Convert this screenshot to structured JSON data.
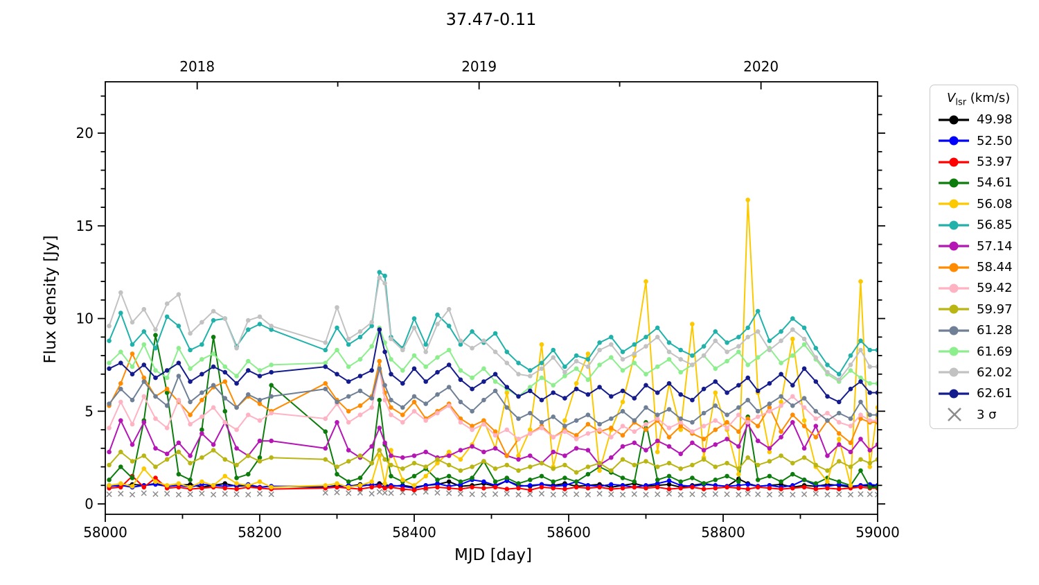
{
  "figure": {
    "title": "37.47-0.11",
    "background": "#ffffff"
  },
  "axes": {
    "x_label": "MJD [day]",
    "y_label": "Flux density [Jy]",
    "x_range": [
      58000,
      59000
    ],
    "y_range": [
      -0.56,
      22.77
    ],
    "x_major_ticks": [
      58000,
      58200,
      58400,
      58600,
      58800,
      59000
    ],
    "x_major_labels": [
      "58000",
      "58200",
      "58400",
      "58600",
      "58800",
      "59000"
    ],
    "x_minor_ticks": [
      58100,
      58300,
      58500,
      58700,
      58900
    ],
    "y_major_ticks": [
      0,
      5,
      10,
      15,
      20
    ],
    "y_major_labels": [
      "0",
      "5",
      "10",
      "15",
      "20"
    ],
    "y_minor_ticks": [
      1,
      2,
      3,
      4,
      6,
      7,
      8,
      9,
      11,
      12,
      13,
      14,
      16,
      17,
      18,
      19,
      21,
      22
    ],
    "top_ticks": [
      {
        "mjd": 58119,
        "label": "2018"
      },
      {
        "mjd": 58301,
        "label": ""
      },
      {
        "mjd": 58484,
        "label": "2019"
      },
      {
        "mjd": 58666,
        "label": ""
      },
      {
        "mjd": 58849,
        "label": "2020"
      }
    ]
  },
  "legend": {
    "title": {
      "symbol": "V",
      "subscript": "lsr",
      "suffix": " (km/s)"
    },
    "sigma": {
      "label": "3 σ",
      "color": "#8c8c8c"
    }
  },
  "chart_data": {
    "type": "line",
    "title": "37.47-0.11",
    "xlabel": "MJD [day]",
    "ylabel": "Flux density [Jy]",
    "xlim": [
      58000,
      59000
    ],
    "ylim": [
      -0.56,
      22.77
    ],
    "grid": false,
    "legend_position": "right-outside",
    "legend_title": "V_lsr (km/s)",
    "x": [
      58005,
      58020,
      58035,
      58050,
      58065,
      58080,
      58095,
      58110,
      58125,
      58140,
      58155,
      58170,
      58185,
      58200,
      58215,
      58285,
      58300,
      58315,
      58330,
      58345,
      58355,
      58362,
      58370,
      58385,
      58400,
      58415,
      58430,
      58445,
      58460,
      58475,
      58490,
      58505,
      58520,
      58535,
      58550,
      58565,
      58580,
      58595,
      58610,
      58625,
      58640,
      58655,
      58670,
      58685,
      58700,
      58715,
      58730,
      58745,
      58760,
      58775,
      58790,
      58805,
      58820,
      58832,
      58845,
      58860,
      58875,
      58890,
      58905,
      58920,
      58935,
      58950,
      58965,
      58978,
      58990,
      59000
    ],
    "series": [
      {
        "name": "49.98",
        "color": "#000000",
        "values": [
          1.0,
          0.95,
          1.05,
          1.0,
          1.1,
          0.95,
          1.0,
          1.05,
          0.9,
          1.0,
          1.1,
          0.95,
          1.0,
          0.9,
          0.95,
          0.9,
          1.0,
          0.95,
          1.05,
          1.0,
          1.1,
          1.05,
          0.95,
          1.0,
          0.9,
          1.0,
          1.05,
          1.2,
          0.95,
          1.0,
          1.1,
          0.95,
          1.25,
          1.0,
          0.95,
          1.05,
          1.0,
          1.1,
          0.95,
          1.0,
          1.05,
          0.9,
          1.0,
          1.1,
          0.95,
          1.0,
          1.05,
          0.9,
          1.0,
          1.1,
          1.0,
          0.95,
          1.35,
          1.1,
          0.95,
          1.0,
          1.05,
          0.9,
          1.0,
          0.95,
          1.05,
          1.0,
          0.9,
          1.0,
          0.95,
          1.0
        ]
      },
      {
        "name": "52.50",
        "color": "#0000ff",
        "values": [
          0.95,
          1.0,
          0.9,
          1.0,
          1.05,
          0.95,
          1.0,
          0.9,
          1.05,
          1.0,
          0.95,
          1.0,
          1.05,
          0.9,
          0.95,
          0.95,
          0.9,
          1.0,
          0.95,
          1.05,
          1.0,
          0.9,
          1.0,
          0.95,
          0.85,
          1.0,
          1.1,
          0.95,
          1.05,
          1.3,
          1.2,
          1.0,
          1.25,
          0.95,
          1.0,
          1.05,
          0.95,
          1.0,
          1.2,
          1.0,
          0.95,
          1.05,
          1.0,
          0.9,
          1.0,
          1.1,
          1.25,
          1.0,
          0.95,
          1.05,
          1.0,
          0.95,
          1.0,
          1.05,
          0.95,
          1.0,
          0.9,
          1.0,
          1.3,
          1.0,
          0.95,
          1.05,
          0.95,
          1.0,
          1.05,
          1.0
        ]
      },
      {
        "name": "53.97",
        "color": "#ff0000",
        "values": [
          0.85,
          0.9,
          1.5,
          0.9,
          1.4,
          0.85,
          0.9,
          0.8,
          0.85,
          0.9,
          0.85,
          0.8,
          0.9,
          0.85,
          0.8,
          0.85,
          0.9,
          0.85,
          0.8,
          0.9,
          0.95,
          0.85,
          0.9,
          0.8,
          0.75,
          0.85,
          0.9,
          0.85,
          0.8,
          0.9,
          0.85,
          0.9,
          0.8,
          0.85,
          0.75,
          0.9,
          0.85,
          0.8,
          0.9,
          0.85,
          0.9,
          0.8,
          0.85,
          0.9,
          0.85,
          0.9,
          0.8,
          0.85,
          0.9,
          0.8,
          0.85,
          0.9,
          0.85,
          0.8,
          0.9,
          0.85,
          0.8,
          0.85,
          0.9,
          0.8,
          0.85,
          0.8,
          0.85,
          0.9,
          0.85,
          0.85
        ]
      },
      {
        "name": "54.61",
        "color": "#0c7c0c",
        "values": [
          1.3,
          2.0,
          1.4,
          4.5,
          9.1,
          6.0,
          1.6,
          1.3,
          4.0,
          9.0,
          5.0,
          1.4,
          1.6,
          2.5,
          6.4,
          3.9,
          1.6,
          1.2,
          1.4,
          2.2,
          5.6,
          3.2,
          1.5,
          1.2,
          1.5,
          1.9,
          1.3,
          1.5,
          1.2,
          1.4,
          2.3,
          1.2,
          1.4,
          1.1,
          1.3,
          1.5,
          1.2,
          1.4,
          1.2,
          1.6,
          2.0,
          1.7,
          1.4,
          1.2,
          4.4,
          1.3,
          1.5,
          1.2,
          1.4,
          1.1,
          1.3,
          1.5,
          1.2,
          4.7,
          1.3,
          1.5,
          1.2,
          1.6,
          1.3,
          1.1,
          1.4,
          1.2,
          1.0,
          1.8,
          0.9,
          0.9
        ]
      },
      {
        "name": "56.08",
        "color": "#fcc900",
        "values": [
          1.0,
          1.1,
          0.95,
          1.9,
          1.2,
          1.0,
          1.1,
          0.9,
          1.2,
          1.0,
          1.5,
          1.1,
          1.0,
          1.2,
          0.9,
          1.0,
          1.1,
          0.9,
          1.0,
          1.2,
          2.6,
          1.1,
          2.9,
          1.3,
          1.0,
          1.5,
          2.2,
          2.8,
          2.4,
          3.2,
          4.5,
          3.0,
          6.0,
          2.6,
          4.0,
          8.6,
          2.0,
          4.5,
          6.5,
          8.1,
          1.8,
          4.0,
          5.5,
          8.0,
          12.0,
          2.8,
          6.5,
          4.0,
          9.7,
          2.5,
          6.0,
          4.0,
          1.6,
          16.4,
          6.0,
          2.8,
          5.5,
          8.9,
          4.5,
          2.0,
          1.2,
          3.5,
          1.0,
          12.0,
          2.0,
          5.2
        ]
      },
      {
        "name": "56.85",
        "color": "#20b2aa",
        "values": [
          8.8,
          10.3,
          8.6,
          9.3,
          8.4,
          10.1,
          9.6,
          8.3,
          8.6,
          9.9,
          10.0,
          8.5,
          9.4,
          9.7,
          9.4,
          8.3,
          9.5,
          8.6,
          9.0,
          9.6,
          12.5,
          12.3,
          9.0,
          8.4,
          10.0,
          8.6,
          10.2,
          9.6,
          8.6,
          9.3,
          8.7,
          9.2,
          8.2,
          7.6,
          7.2,
          7.6,
          8.3,
          7.4,
          8.0,
          7.8,
          8.7,
          9.0,
          8.2,
          8.6,
          9.0,
          9.5,
          8.7,
          8.3,
          8.0,
          8.5,
          9.3,
          8.7,
          9.0,
          9.5,
          10.4,
          8.8,
          9.3,
          10.0,
          9.5,
          8.4,
          7.5,
          7.0,
          8.0,
          8.8,
          8.3,
          8.3
        ]
      },
      {
        "name": "57.14",
        "color": "#b515b5",
        "values": [
          2.8,
          4.5,
          3.2,
          4.4,
          3.0,
          2.7,
          3.3,
          2.6,
          3.8,
          3.2,
          4.4,
          3.0,
          2.6,
          3.4,
          3.4,
          3.0,
          4.4,
          2.9,
          2.5,
          3.1,
          4.1,
          3.3,
          2.6,
          2.5,
          2.6,
          2.8,
          2.5,
          2.6,
          2.9,
          3.1,
          2.8,
          3.0,
          2.6,
          2.4,
          2.6,
          2.2,
          2.8,
          2.6,
          3.0,
          2.9,
          2.1,
          2.5,
          3.1,
          3.3,
          2.9,
          3.4,
          3.1,
          2.7,
          3.3,
          2.9,
          3.2,
          3.5,
          3.1,
          4.3,
          3.4,
          3.0,
          3.6,
          4.4,
          3.0,
          4.2,
          2.6,
          3.2,
          2.8,
          3.5,
          2.9,
          3.2
        ]
      },
      {
        "name": "58.44",
        "color": "#ff8c00",
        "values": [
          5.3,
          6.5,
          8.1,
          6.8,
          5.8,
          6.2,
          5.5,
          4.8,
          5.6,
          6.3,
          6.6,
          5.2,
          5.8,
          5.4,
          5.0,
          6.5,
          5.6,
          5.0,
          5.3,
          5.8,
          7.7,
          6.0,
          5.2,
          4.8,
          5.5,
          4.6,
          5.0,
          5.4,
          4.6,
          4.2,
          4.5,
          3.9,
          2.6,
          3.5,
          3.8,
          4.2,
          3.6,
          4.0,
          3.7,
          4.3,
          3.9,
          4.1,
          3.7,
          4.4,
          4.0,
          4.5,
          3.6,
          4.2,
          3.8,
          3.5,
          4.0,
          4.4,
          3.9,
          4.6,
          4.2,
          5.2,
          3.9,
          4.8,
          4.2,
          3.6,
          4.5,
          3.8,
          3.3,
          4.6,
          4.4,
          4.4
        ]
      },
      {
        "name": "59.42",
        "color": "#ffb2c2",
        "values": [
          4.1,
          5.5,
          4.3,
          5.8,
          4.6,
          4.1,
          5.6,
          4.3,
          4.7,
          5.2,
          4.4,
          4.0,
          4.8,
          4.5,
          4.9,
          4.6,
          5.4,
          4.4,
          4.8,
          5.2,
          7.3,
          5.6,
          4.8,
          4.4,
          5.0,
          4.5,
          4.9,
          5.3,
          4.4,
          4.0,
          4.3,
          3.7,
          4.0,
          3.5,
          3.8,
          4.1,
          3.6,
          3.9,
          3.5,
          3.8,
          4.0,
          3.6,
          4.2,
          3.9,
          4.3,
          4.6,
          4.1,
          4.4,
          3.9,
          4.2,
          4.5,
          4.1,
          4.8,
          4.4,
          4.7,
          5.0,
          5.3,
          5.8,
          5.2,
          4.6,
          4.9,
          4.4,
          4.2,
          4.8,
          4.5,
          4.5
        ]
      },
      {
        "name": "59.97",
        "color": "#b9b513",
        "values": [
          2.1,
          2.8,
          2.3,
          2.6,
          2.0,
          2.4,
          2.8,
          2.2,
          2.5,
          2.9,
          2.4,
          2.1,
          2.6,
          2.3,
          2.5,
          2.4,
          2.0,
          2.3,
          2.6,
          2.2,
          2.9,
          2.4,
          2.1,
          1.9,
          2.2,
          2.0,
          2.4,
          2.1,
          1.8,
          2.0,
          2.3,
          1.9,
          2.1,
          1.8,
          2.0,
          2.2,
          1.9,
          2.1,
          1.7,
          2.0,
          2.2,
          1.8,
          2.4,
          2.1,
          2.3,
          2.0,
          2.2,
          1.9,
          2.1,
          2.4,
          2.0,
          2.2,
          1.9,
          2.5,
          2.1,
          2.3,
          2.6,
          2.2,
          2.5,
          2.1,
          1.8,
          2.3,
          2.0,
          2.4,
          2.2,
          2.4
        ]
      },
      {
        "name": "61.28",
        "color": "#6f8096",
        "values": [
          5.4,
          6.2,
          5.6,
          6.6,
          5.8,
          5.3,
          6.9,
          5.5,
          6.0,
          6.4,
          5.7,
          5.2,
          5.9,
          5.6,
          5.8,
          6.2,
          5.5,
          5.8,
          6.1,
          5.7,
          7.3,
          6.4,
          5.6,
          5.2,
          5.8,
          5.4,
          5.9,
          6.3,
          5.5,
          5.0,
          5.6,
          6.1,
          5.2,
          4.6,
          4.9,
          4.4,
          4.7,
          4.2,
          4.5,
          4.8,
          4.3,
          4.6,
          5.0,
          4.5,
          5.2,
          4.8,
          5.1,
          4.6,
          4.4,
          4.9,
          5.3,
          4.8,
          5.2,
          5.6,
          5.0,
          5.4,
          5.8,
          5.3,
          5.7,
          5.0,
          4.5,
          4.9,
          4.6,
          5.5,
          4.8,
          4.8
        ]
      },
      {
        "name": "61.69",
        "color": "#8cee8c",
        "values": [
          7.6,
          8.2,
          7.4,
          8.6,
          7.2,
          6.8,
          8.4,
          7.3,
          7.8,
          8.1,
          7.4,
          6.9,
          7.7,
          7.2,
          7.5,
          7.6,
          8.3,
          7.4,
          7.8,
          8.5,
          9.5,
          8.7,
          7.8,
          7.2,
          8.0,
          7.4,
          7.9,
          8.3,
          7.2,
          6.8,
          7.3,
          6.6,
          6.2,
          5.8,
          6.3,
          6.8,
          6.4,
          6.9,
          7.3,
          6.7,
          7.5,
          7.9,
          7.2,
          7.6,
          7.0,
          7.4,
          7.8,
          7.1,
          7.5,
          8.0,
          7.3,
          7.7,
          8.2,
          7.5,
          7.9,
          8.4,
          7.6,
          8.0,
          8.6,
          7.8,
          7.0,
          6.6,
          7.2,
          6.8,
          6.5,
          6.5
        ]
      },
      {
        "name": "62.02",
        "color": "#c2c2c2",
        "values": [
          9.6,
          11.4,
          9.8,
          10.5,
          9.4,
          10.8,
          11.3,
          9.2,
          9.8,
          10.4,
          10.0,
          8.4,
          9.9,
          10.1,
          9.6,
          8.7,
          10.6,
          8.9,
          9.3,
          9.8,
          12.2,
          11.9,
          8.9,
          8.3,
          9.5,
          8.2,
          9.7,
          10.5,
          8.8,
          8.4,
          8.8,
          8.2,
          7.6,
          7.0,
          6.9,
          7.3,
          7.9,
          7.1,
          7.7,
          7.4,
          8.3,
          8.6,
          7.8,
          8.1,
          8.5,
          9.0,
          8.2,
          7.8,
          7.5,
          8.0,
          8.8,
          8.2,
          8.5,
          9.0,
          9.3,
          8.3,
          8.8,
          9.4,
          8.9,
          7.9,
          7.1,
          6.7,
          7.5,
          8.3,
          7.4,
          7.4
        ]
      },
      {
        "name": "62.61",
        "color": "#141b8c",
        "values": [
          7.3,
          7.6,
          7.0,
          7.5,
          6.8,
          7.2,
          7.6,
          6.6,
          7.0,
          7.4,
          7.1,
          6.5,
          7.2,
          6.9,
          7.1,
          7.4,
          7.0,
          6.6,
          6.9,
          7.2,
          9.4,
          8.2,
          7.0,
          6.5,
          7.3,
          6.6,
          7.1,
          7.5,
          6.7,
          6.2,
          6.6,
          7.0,
          6.3,
          5.8,
          6.1,
          5.6,
          6.0,
          5.7,
          6.2,
          5.9,
          6.3,
          5.8,
          6.1,
          5.7,
          6.4,
          6.0,
          6.5,
          5.9,
          5.6,
          6.2,
          6.6,
          6.0,
          6.4,
          6.8,
          6.1,
          6.5,
          7.0,
          6.4,
          7.3,
          6.6,
          5.8,
          5.5,
          6.2,
          6.6,
          6.0,
          6.0
        ]
      }
    ],
    "sigma_series": {
      "name": "3 σ",
      "marker": "x",
      "color": "#8c8c8c",
      "values": [
        0.52,
        0.55,
        0.5,
        0.58,
        0.53,
        0.55,
        0.5,
        0.52,
        0.56,
        0.5,
        0.54,
        0.52,
        0.5,
        0.55,
        0.52,
        0.6,
        0.62,
        0.58,
        0.6,
        0.55,
        0.65,
        0.6,
        0.58,
        0.62,
        0.6,
        0.65,
        0.6,
        0.58,
        0.55,
        0.52,
        0.5,
        0.53,
        0.55,
        0.5,
        0.52,
        0.55,
        0.5,
        0.53,
        0.52,
        0.5,
        0.55,
        0.52,
        0.5,
        0.53,
        0.5,
        0.52,
        0.55,
        0.5,
        0.52,
        0.5,
        0.53,
        0.52,
        0.5,
        0.55,
        0.52,
        0.5,
        0.53,
        0.5,
        0.52,
        0.55,
        0.5,
        0.52,
        0.5,
        0.53,
        0.52,
        0.5
      ]
    }
  }
}
